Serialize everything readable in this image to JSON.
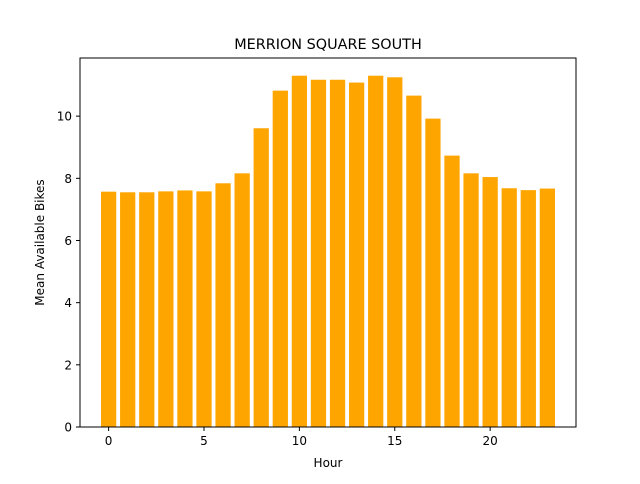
{
  "chart_data": {
    "type": "bar",
    "title": "MERRION SQUARE SOUTH",
    "xlabel": "Hour",
    "ylabel": "Mean Available Bikes",
    "x": [
      0,
      1,
      2,
      3,
      4,
      5,
      6,
      7,
      8,
      9,
      10,
      11,
      12,
      13,
      14,
      15,
      16,
      17,
      18,
      19,
      20,
      21,
      22,
      23
    ],
    "values": [
      7.57,
      7.55,
      7.55,
      7.58,
      7.61,
      7.58,
      7.84,
      8.16,
      9.61,
      10.82,
      11.3,
      11.17,
      11.17,
      11.08,
      11.3,
      11.25,
      10.66,
      9.92,
      8.73,
      8.16,
      8.04,
      7.68,
      7.62,
      7.67
    ],
    "xlim": [
      -1.5,
      24.5
    ],
    "ylim": [
      0,
      11.87
    ],
    "xticks": [
      0,
      5,
      10,
      15,
      20
    ],
    "yticks": [
      0,
      2,
      4,
      6,
      8,
      10
    ],
    "bar_color": "#ffa500",
    "grid": false,
    "legend": "none"
  }
}
